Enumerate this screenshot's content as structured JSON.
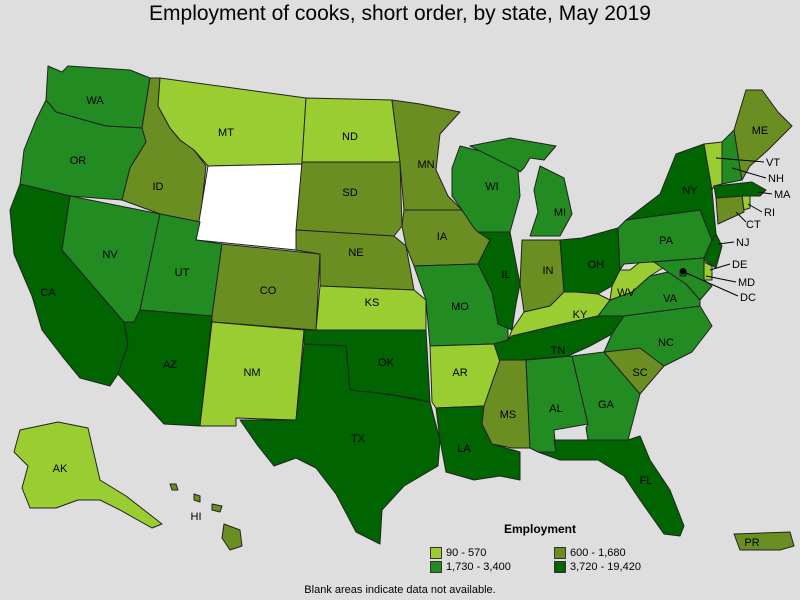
{
  "title": "Employment of cooks, short order, by state, May 2019",
  "footnote": "Blank areas indicate data not available.",
  "legend": {
    "title": "Employment",
    "items": [
      {
        "label": "90 - 570",
        "color": "#9acd32"
      },
      {
        "label": "600 - 1,680",
        "color": "#6b8e23"
      },
      {
        "label": "1,730 - 3,400",
        "color": "#228b22"
      },
      {
        "label": "3,720 - 19,420",
        "color": "#006400"
      }
    ]
  },
  "no_data_color": "#ffffff",
  "states": [
    {
      "code": "WA",
      "class": 2
    },
    {
      "code": "OR",
      "class": 2
    },
    {
      "code": "CA",
      "class": 3
    },
    {
      "code": "NV",
      "class": 2
    },
    {
      "code": "ID",
      "class": 1
    },
    {
      "code": "MT",
      "class": 0
    },
    {
      "code": "WY",
      "class": null
    },
    {
      "code": "UT",
      "class": 2
    },
    {
      "code": "AZ",
      "class": 3
    },
    {
      "code": "CO",
      "class": 1
    },
    {
      "code": "NM",
      "class": 0
    },
    {
      "code": "ND",
      "class": 0
    },
    {
      "code": "SD",
      "class": 1
    },
    {
      "code": "NE",
      "class": 1
    },
    {
      "code": "KS",
      "class": 0
    },
    {
      "code": "OK",
      "class": 3
    },
    {
      "code": "TX",
      "class": 3
    },
    {
      "code": "MN",
      "class": 1
    },
    {
      "code": "IA",
      "class": 1
    },
    {
      "code": "MO",
      "class": 2
    },
    {
      "code": "AR",
      "class": 0
    },
    {
      "code": "LA",
      "class": 3
    },
    {
      "code": "WI",
      "class": 2
    },
    {
      "code": "IL",
      "class": 3
    },
    {
      "code": "MI",
      "class": 2
    },
    {
      "code": "IN",
      "class": 1
    },
    {
      "code": "OH",
      "class": 3
    },
    {
      "code": "KY",
      "class": 0
    },
    {
      "code": "TN",
      "class": 3
    },
    {
      "code": "MS",
      "class": 1
    },
    {
      "code": "AL",
      "class": 2
    },
    {
      "code": "GA",
      "class": 2
    },
    {
      "code": "FL",
      "class": 3
    },
    {
      "code": "SC",
      "class": 1
    },
    {
      "code": "NC",
      "class": 2
    },
    {
      "code": "VA",
      "class": 2
    },
    {
      "code": "WV",
      "class": 0
    },
    {
      "code": "PA",
      "class": 2
    },
    {
      "code": "NY",
      "class": 3
    },
    {
      "code": "NJ",
      "class": 3
    },
    {
      "code": "DE",
      "class": 0
    },
    {
      "code": "MD",
      "class": 2
    },
    {
      "code": "DC",
      "class": 3
    },
    {
      "code": "CT",
      "class": 1
    },
    {
      "code": "RI",
      "class": 0
    },
    {
      "code": "MA",
      "class": 3
    },
    {
      "code": "VT",
      "class": 0
    },
    {
      "code": "NH",
      "class": 2
    },
    {
      "code": "ME",
      "class": 1
    },
    {
      "code": "AK",
      "class": 0
    },
    {
      "code": "HI",
      "class": 1
    },
    {
      "code": "PR",
      "class": 1
    }
  ]
}
